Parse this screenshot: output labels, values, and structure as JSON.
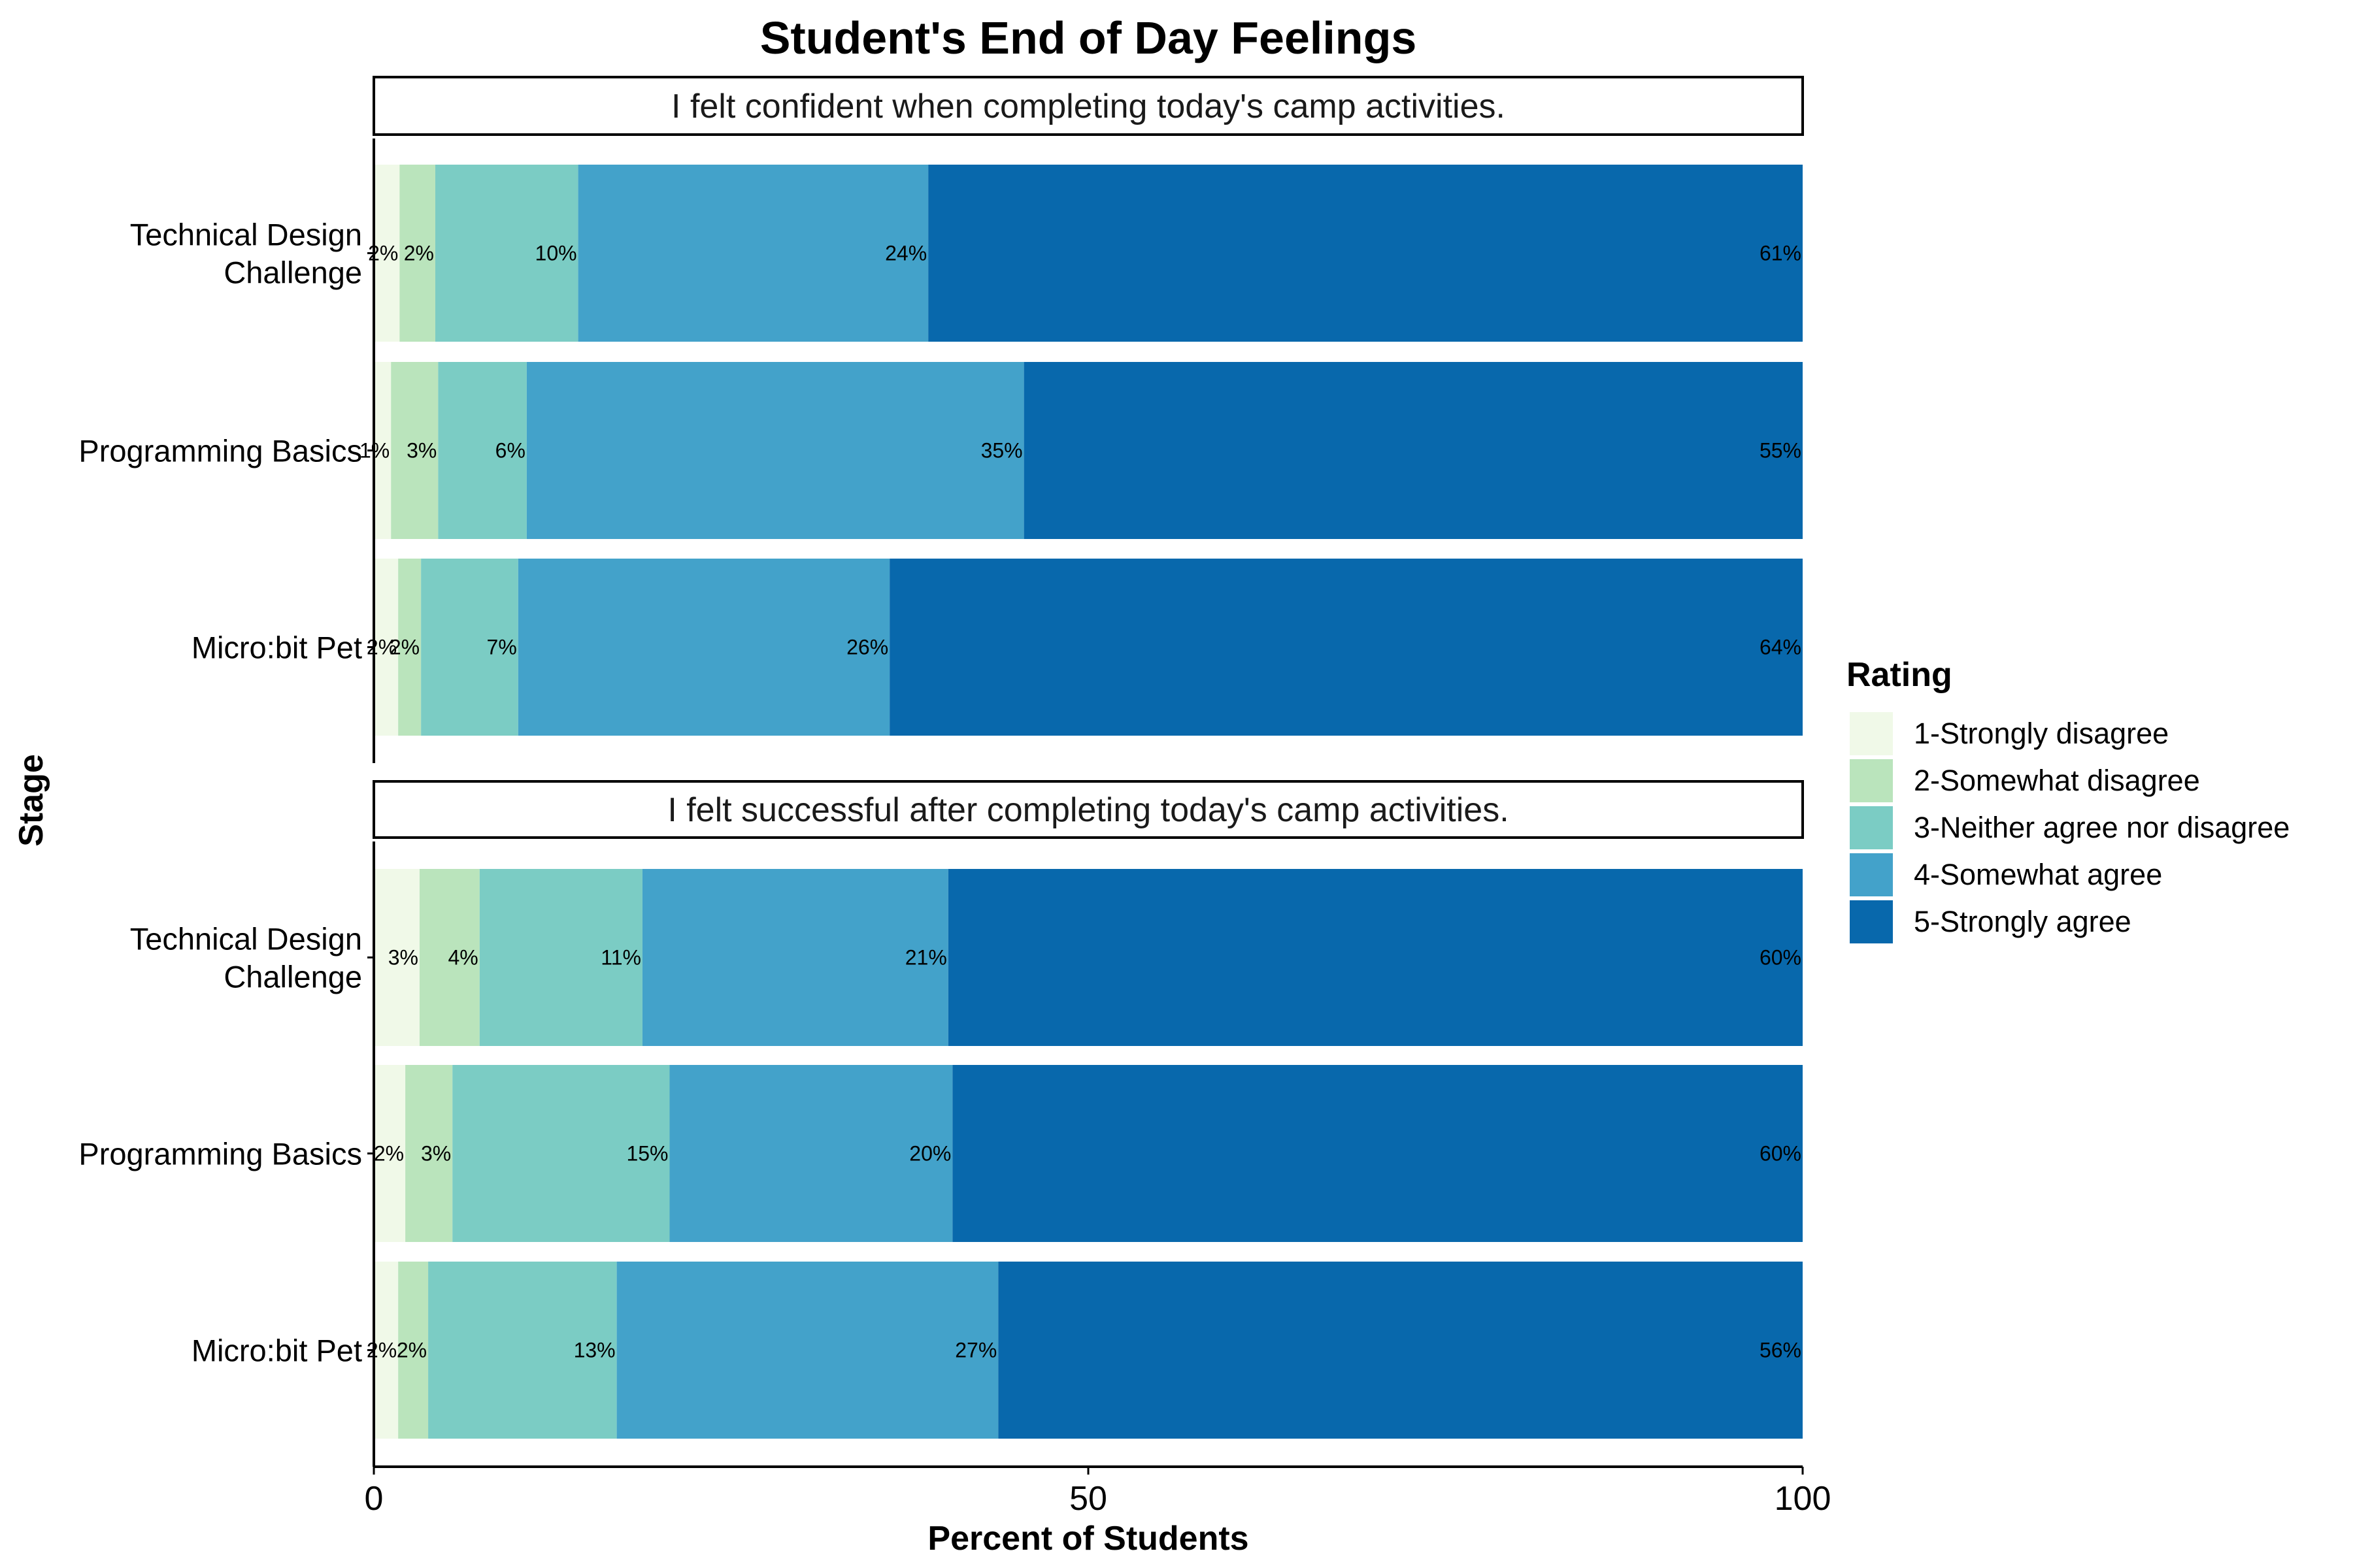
{
  "chart_data": {
    "type": "bar",
    "orientation": "horizontal",
    "stacked": true,
    "title": "Student's End of Day Feelings",
    "xlabel": "Percent of Students",
    "ylabel": "Stage",
    "xlim": [
      0,
      100
    ],
    "xticks": [
      "0",
      "50",
      "100"
    ],
    "grid": false,
    "legend": {
      "title": "Rating",
      "position": "right",
      "entries": [
        {
          "label": "1-Strongly disagree",
          "color": "#f0f9e8"
        },
        {
          "label": "2-Somewhat disagree",
          "color": "#bae4bc"
        },
        {
          "label": "3-Neither agree nor disagree",
          "color": "#7bccc4"
        },
        {
          "label": "4-Somewhat agree",
          "color": "#43a2ca"
        },
        {
          "label": "5-Strongly agree",
          "color": "#0868ac"
        }
      ]
    },
    "panels": [
      {
        "question": "I felt confident when completing today's camp activities.",
        "rows": [
          {
            "stage": [
              "Technical Design",
              "Challenge"
            ],
            "values": [
              1.8,
              2.5,
              10.0,
              24.5,
              61.2
            ],
            "labels": [
              "2%",
              "2%",
              "10%",
              "24%",
              "61%"
            ]
          },
          {
            "stage": [
              "Programming Basics"
            ],
            "values": [
              1.2,
              3.3,
              6.2,
              34.8,
              54.5
            ],
            "labels": [
              "1%",
              "3%",
              "6%",
              "35%",
              "55%"
            ]
          },
          {
            "stage": [
              "Micro:bit Pet"
            ],
            "values": [
              1.7,
              1.6,
              6.8,
              26.0,
              63.9
            ],
            "labels": [
              "2%",
              "2%",
              "7%",
              "26%",
              "64%"
            ]
          }
        ]
      },
      {
        "question": "I felt successful after completing today's camp activities.",
        "rows": [
          {
            "stage": [
              "Technical Design",
              "Challenge"
            ],
            "values": [
              3.2,
              4.2,
              11.4,
              21.4,
              59.8
            ],
            "labels": [
              "3%",
              "4%",
              "11%",
              "21%",
              "60%"
            ]
          },
          {
            "stage": [
              "Programming Basics"
            ],
            "values": [
              2.2,
              3.3,
              15.2,
              19.8,
              59.5
            ],
            "labels": [
              "2%",
              "3%",
              "15%",
              "20%",
              "60%"
            ]
          },
          {
            "stage": [
              "Micro:bit Pet"
            ],
            "values": [
              1.7,
              2.1,
              13.2,
              26.7,
              56.3
            ],
            "labels": [
              "2%",
              "2%",
              "13%",
              "27%",
              "56%"
            ]
          }
        ]
      }
    ]
  }
}
